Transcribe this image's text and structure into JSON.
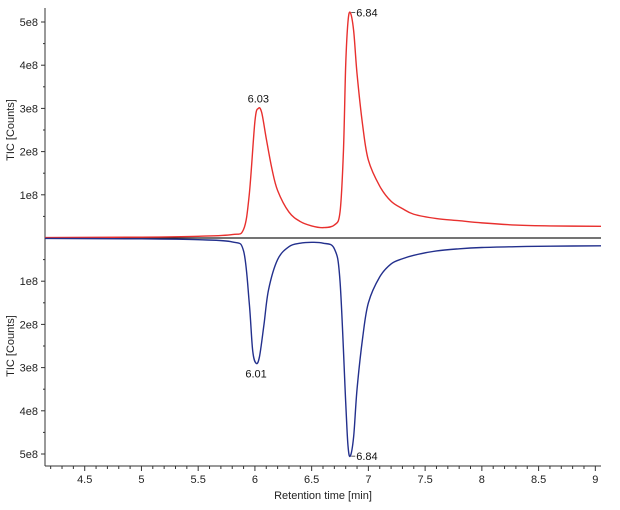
{
  "chart_data": {
    "type": "line",
    "xlabel": "Retention time [min]",
    "x_ticks": [
      "4.5",
      "5",
      "5.5",
      "6",
      "6.5",
      "7",
      "7.5",
      "8",
      "8.5",
      "9"
    ],
    "xlim": [
      4.15,
      9.05
    ],
    "series": [
      {
        "color": "#e8302e",
        "ylabel": "TIC [Counts]",
        "y_ticks": [
          "1e8",
          "2e8",
          "3e8",
          "4e8",
          "5e8"
        ],
        "ylim": [
          0,
          530000000
        ],
        "peaks": [
          {
            "x": 6.03,
            "y": 300000000,
            "label": "6.03"
          },
          {
            "x": 6.84,
            "y": 522000000,
            "label": "6.84"
          }
        ],
        "x": [
          4.15,
          5.0,
          5.5,
          5.8,
          5.9,
          5.95,
          6.0,
          6.03,
          6.06,
          6.1,
          6.15,
          6.2,
          6.3,
          6.4,
          6.5,
          6.6,
          6.7,
          6.75,
          6.78,
          6.8,
          6.82,
          6.84,
          6.87,
          6.9,
          6.95,
          7.0,
          7.1,
          7.2,
          7.3,
          7.4,
          7.6,
          7.8,
          8.0,
          8.3,
          8.6,
          9.05
        ],
        "y": [
          1000000,
          2000000,
          4000000,
          8000000,
          20000000,
          100000000,
          270000000,
          300000000,
          290000000,
          230000000,
          160000000,
          110000000,
          60000000,
          38000000,
          28000000,
          24000000,
          30000000,
          60000000,
          200000000,
          400000000,
          500000000,
          522000000,
          480000000,
          380000000,
          260000000,
          180000000,
          120000000,
          85000000,
          68000000,
          55000000,
          45000000,
          40000000,
          35000000,
          30000000,
          28000000,
          27000000
        ]
      },
      {
        "color": "#23308d",
        "ylabel": "TIC [Counts]",
        "y_ticks": [
          "1e8",
          "2e8",
          "3e8",
          "4e8",
          "5e8"
        ],
        "ylim": [
          0,
          530000000
        ],
        "peaks": [
          {
            "x": 6.01,
            "y": 290000000,
            "label": "6.01"
          },
          {
            "x": 6.84,
            "y": 505000000,
            "label": "6.84"
          }
        ],
        "x": [
          4.15,
          5.0,
          5.5,
          5.8,
          5.9,
          5.95,
          5.98,
          6.01,
          6.04,
          6.08,
          6.12,
          6.2,
          6.3,
          6.4,
          6.5,
          6.6,
          6.7,
          6.75,
          6.8,
          6.82,
          6.84,
          6.87,
          6.9,
          6.95,
          7.0,
          7.1,
          7.2,
          7.3,
          7.4,
          7.6,
          7.8,
          8.0,
          8.3,
          8.6,
          9.05
        ],
        "y": [
          1000000,
          2000000,
          4000000,
          9000000,
          30000000,
          150000000,
          260000000,
          290000000,
          275000000,
          200000000,
          120000000,
          50000000,
          20000000,
          12000000,
          10000000,
          12000000,
          25000000,
          100000000,
          380000000,
          480000000,
          505000000,
          460000000,
          350000000,
          230000000,
          150000000,
          90000000,
          60000000,
          48000000,
          40000000,
          30000000,
          25000000,
          22000000,
          20000000,
          19000000,
          18000000
        ]
      }
    ]
  }
}
